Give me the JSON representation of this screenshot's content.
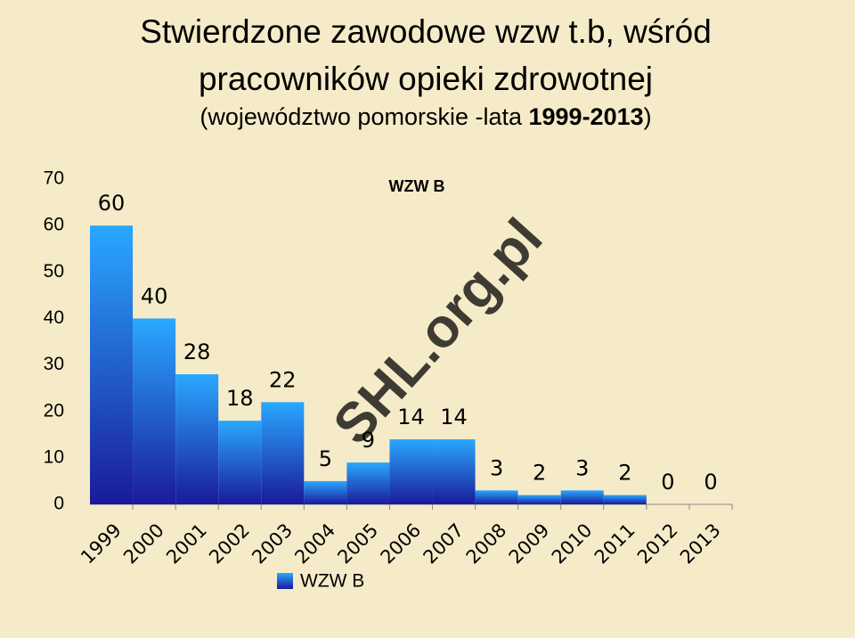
{
  "chart_data": {
    "type": "bar",
    "title": [
      "Stwierdzone zawodowe wzw t.b, wśród",
      "pracowników opieki zdrowotnej"
    ],
    "subtitle": [
      "(województwo pomorskie -lata ",
      "1999-2013",
      ")"
    ],
    "watermark": "SHL.org.pl",
    "categories": [
      "1999",
      "2000",
      "2001",
      "2002",
      "2003",
      "2004",
      "2005",
      "2006",
      "2007",
      "2008",
      "2009",
      "2010",
      "2011",
      "2012",
      "2013"
    ],
    "series": [
      {
        "name": "WZW B",
        "color": "#1e90ff",
        "values": [
          60,
          40,
          28,
          18,
          22,
          5,
          9,
          14,
          14,
          3,
          2,
          3,
          2,
          0,
          0
        ]
      }
    ],
    "ylim": [
      0,
      70
    ],
    "yticks": [
      0,
      10,
      20,
      30,
      40,
      50,
      60,
      70
    ],
    "grid": false,
    "legend": "bottom"
  }
}
